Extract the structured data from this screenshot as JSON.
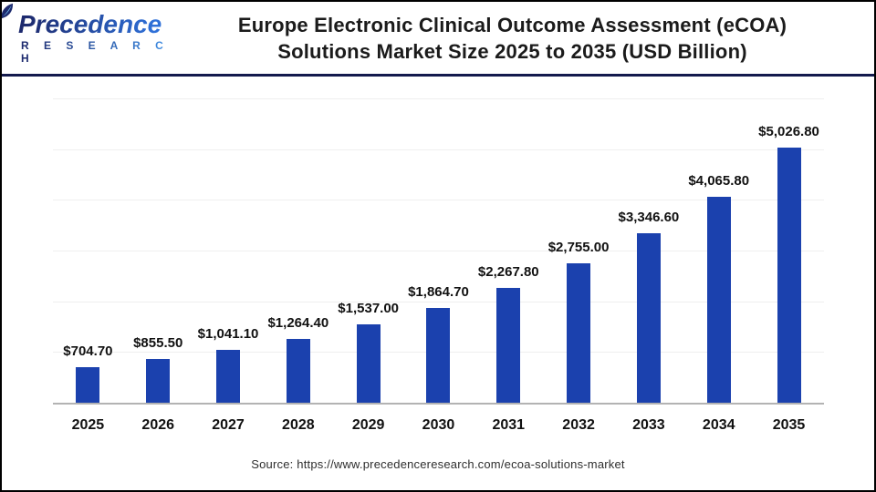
{
  "header": {
    "logo": {
      "brand": "Precedence",
      "sub": "R E S E A R C H",
      "icon": "leaf-icon",
      "gradient_start": "#1d2a6e",
      "gradient_end": "#2f70d8"
    },
    "title_line1": "Europe Electronic Clinical Outcome Assessment (eCOA)",
    "title_line2": "Solutions Market Size 2025 to 2035 (USD Billion)"
  },
  "chart_data": {
    "type": "bar",
    "title": "Europe Electronic Clinical Outcome Assessment (eCOA) Solutions Market Size 2025 to 2035 (USD Billion)",
    "categories": [
      "2025",
      "2026",
      "2027",
      "2028",
      "2029",
      "2030",
      "2031",
      "2032",
      "2033",
      "2034",
      "2035"
    ],
    "values": [
      704.7,
      855.5,
      1041.1,
      1264.4,
      1537.0,
      1864.7,
      2267.8,
      2755.0,
      3346.6,
      4065.8,
      5026.8
    ],
    "value_labels": [
      "$704.70",
      "$855.50",
      "$1,041.10",
      "$1,264.40",
      "$1,537.00",
      "$1,864.70",
      "$2,267.80",
      "$2,755.00",
      "$3,346.60",
      "$4,065.80",
      "$5,026.80"
    ],
    "unit": "USD Billion",
    "xlabel": "",
    "ylabel": "",
    "ylim": [
      0,
      6000
    ],
    "gridline_count": 6,
    "grid": "on",
    "legend": "none",
    "bar_color": "#1b41ae",
    "baseline_color": "#b3b3b3",
    "gridline_color": "#efefef"
  },
  "footer": {
    "source": "Source: https://www.precedenceresearch.com/ecoa-solutions-market"
  }
}
